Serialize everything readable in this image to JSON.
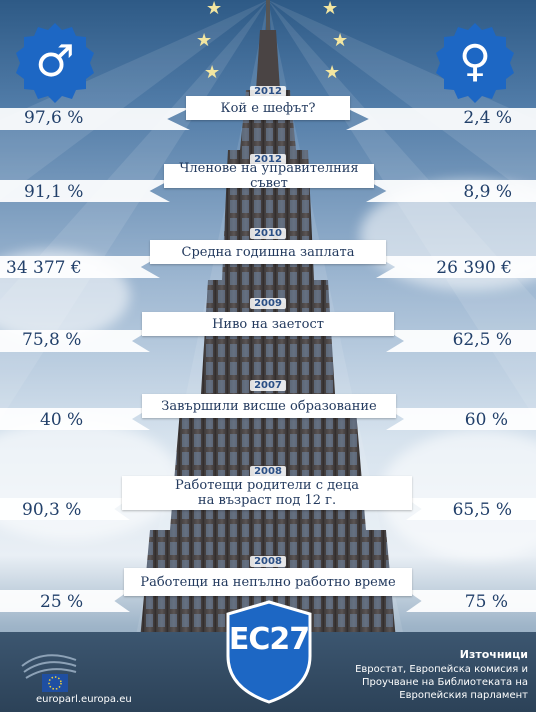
{
  "male_symbol": "♂",
  "female_symbol": "♀",
  "rows": [
    {
      "year": "2012",
      "label": "Кой е шефът?",
      "male": "97,6 %",
      "female": "2,4 %"
    },
    {
      "year": "2012",
      "label": "Членове на управителния съвет",
      "male": "91,1 %",
      "female": "8,9 %"
    },
    {
      "year": "2010",
      "label": "Средна годишна заплата",
      "male": "34 377 €",
      "female": "26 390 €"
    },
    {
      "year": "2009",
      "label": "Ниво на заетост",
      "male": "75,8 %",
      "female": "62,5 %"
    },
    {
      "year": "2007",
      "label": "Завършили висше образование",
      "male": "40 %",
      "female": "60 %"
    },
    {
      "year": "2008",
      "label_line1": "Работещи родители с деца",
      "label_line2": "на възраст под 12 г.",
      "male": "90,3 %",
      "female": "65,5 %"
    },
    {
      "year": "2008",
      "label": "Работещи на непълно работно време",
      "male": "25 %",
      "female": "75 %"
    }
  ],
  "badge": "ЕС27",
  "sources": {
    "title": "Източници",
    "line1": "Евростат, Европейска комисия и",
    "line2": "Проучване на Библиотеката на",
    "line3": "Европейския парламент"
  },
  "url": "europarl.europa.eu",
  "colors": {
    "accent": "#2a5fa6",
    "text": "#22406a"
  }
}
